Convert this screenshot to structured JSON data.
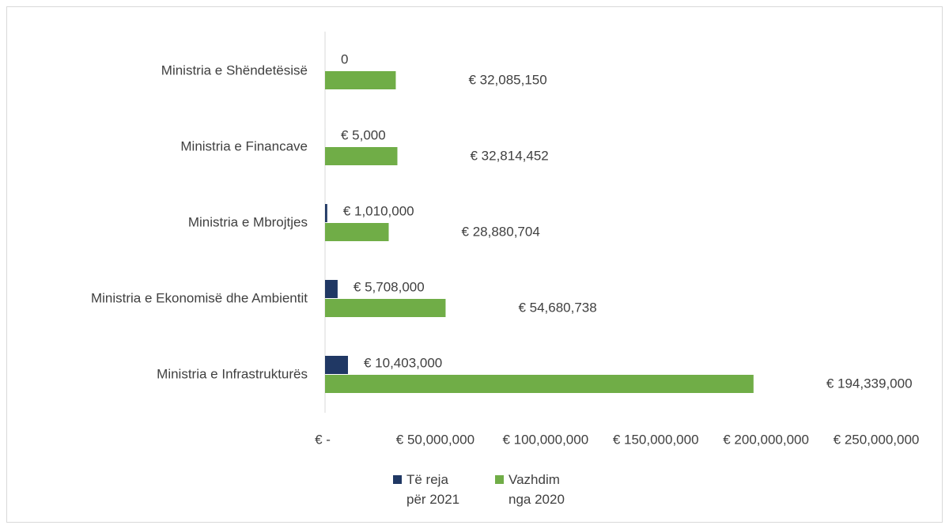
{
  "chart_data": {
    "type": "hbar",
    "categories": [
      "Ministria e Shëndetësisë",
      "Ministria e Financave",
      "Ministria e Mbrojtjes",
      "Ministria e Ekonomisë dhe Ambientit",
      "Ministria e Infrastrukturës"
    ],
    "series": [
      {
        "name": "Të reja për 2021",
        "color": "#203864",
        "values": [
          0,
          5000,
          1010000,
          5708000,
          10403000
        ],
        "value_labels": [
          "0",
          "€ 5,000",
          "€ 1,010,000",
          "€ 5,708,000",
          "€ 10,403,000"
        ]
      },
      {
        "name": "Vazhdim nga 2020",
        "color": "#70ad47",
        "values": [
          32085150,
          32814452,
          28880704,
          54680738,
          194339000
        ],
        "value_labels": [
          "€ 32,085,150",
          "€ 32,814,452",
          "€ 28,880,704",
          "€ 54,680,738",
          "€ 194,339,000"
        ]
      }
    ],
    "xlim": [
      0,
      250000000
    ],
    "xticks": [
      {
        "value": 0,
        "label": "€ -"
      },
      {
        "value": 50000000,
        "label": "€ 50,000,000"
      },
      {
        "value": 100000000,
        "label": "€ 100,000,000"
      },
      {
        "value": 150000000,
        "label": "€ 150,000,000"
      },
      {
        "value": 200000000,
        "label": "€ 200,000,000"
      },
      {
        "value": 250000000,
        "label": "€ 250,000,000"
      }
    ],
    "legend": "bottom"
  }
}
